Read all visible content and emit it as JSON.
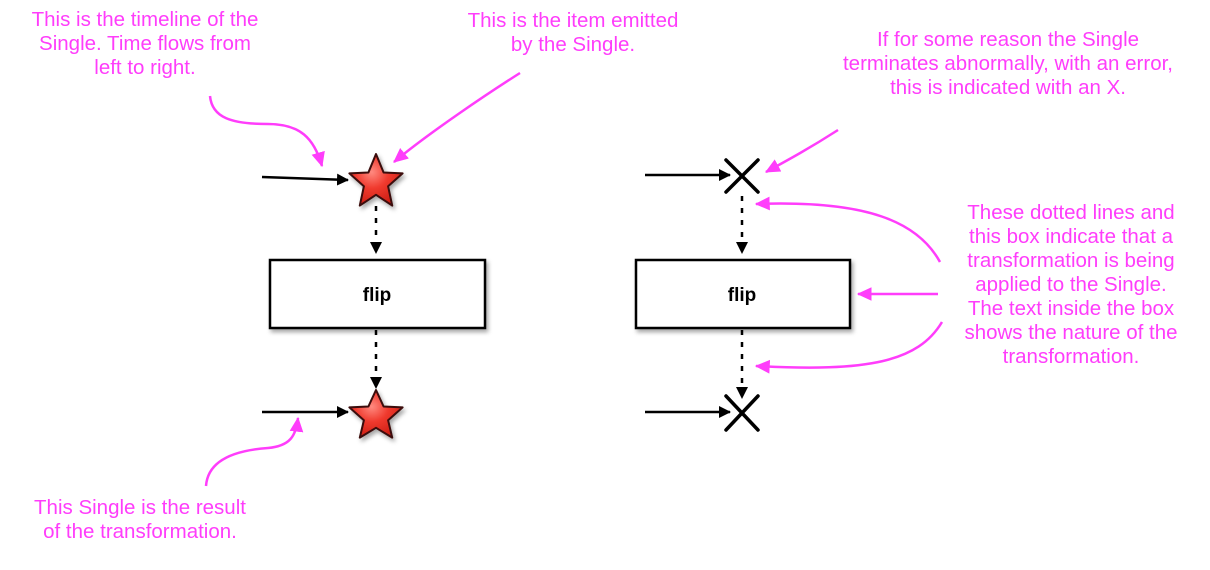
{
  "operator": {
    "left_label": "flip",
    "right_label": "flip"
  },
  "annotations": {
    "timeline": [
      "This is the timeline of the",
      "Single. Time flows from",
      "left to right."
    ],
    "item": [
      "This is the item emitted",
      "by the Single."
    ],
    "error": [
      "If for some reason the Single",
      "terminates abnormally, with an error,",
      "this is indicated with an X."
    ],
    "transformation": [
      "These dotted lines and",
      "this box indicate that a",
      "transformation is being",
      "applied to the Single.",
      "The text inside the box",
      "shows the nature of the",
      "transformation."
    ],
    "result": [
      "This Single is the result",
      "of the transformation."
    ]
  },
  "colors": {
    "annotation": "#ff3dfb",
    "star_fill": "#ee2a22",
    "star_stroke": "#3a0a08",
    "line": "#000000",
    "box_fill": "#ffffff"
  }
}
